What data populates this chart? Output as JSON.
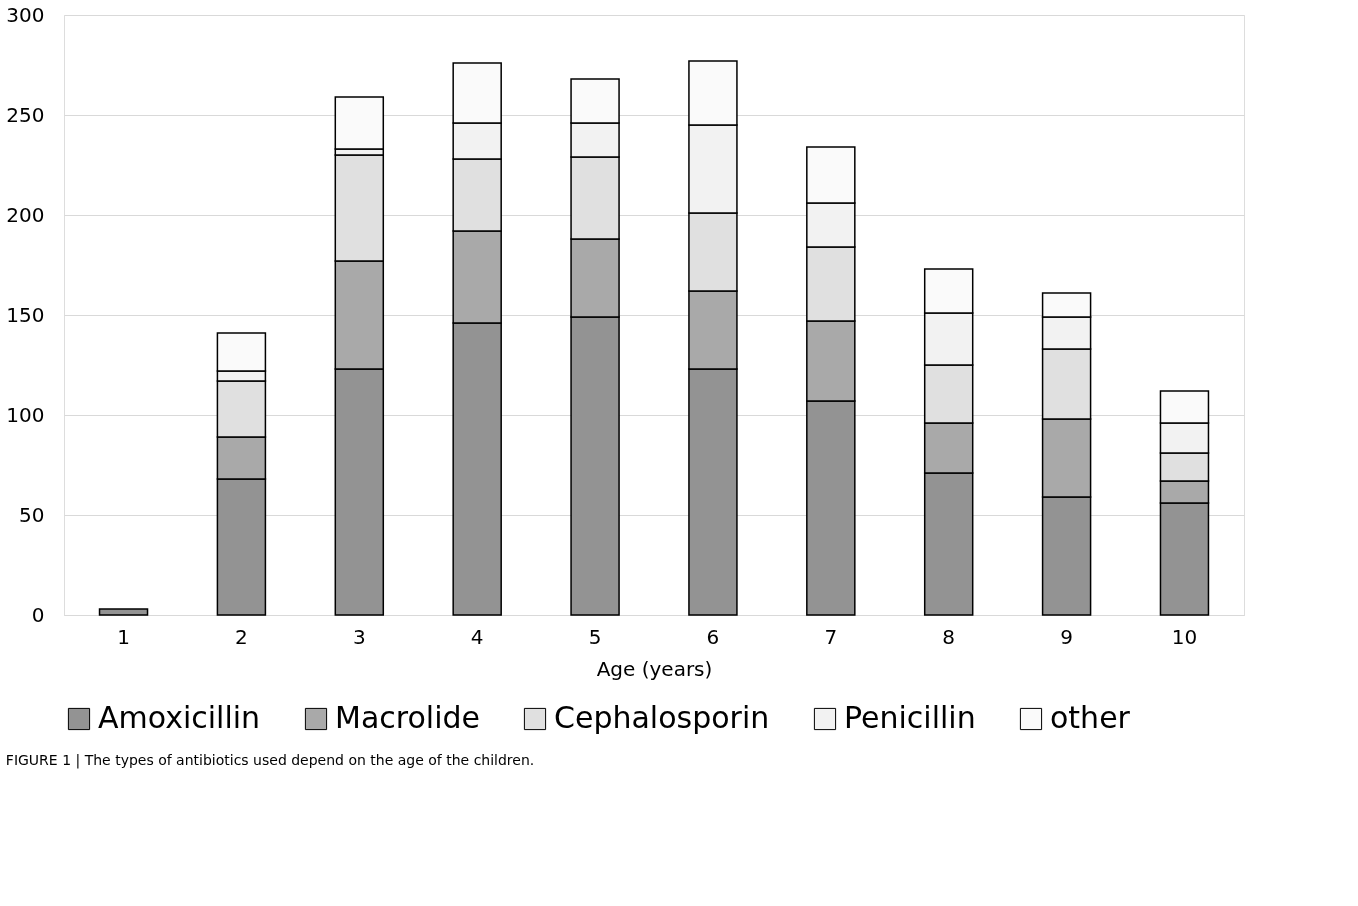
{
  "chart_data": {
    "type": "bar",
    "stacked": true,
    "xlabel": "Age (years)",
    "categories": [
      "1",
      "2",
      "3",
      "4",
      "5",
      "6",
      "7",
      "8",
      "9",
      "10"
    ],
    "series": [
      {
        "name": "Amoxicillin",
        "color": "#939393",
        "values": [
          3,
          68,
          123,
          146,
          149,
          123,
          107,
          71,
          59,
          56
        ]
      },
      {
        "name": "Macrolide",
        "color": "#a9a9a9",
        "values": [
          0,
          21,
          54,
          46,
          39,
          39,
          40,
          25,
          39,
          11
        ]
      },
      {
        "name": "Cephalosporin",
        "color": "#e0e0e0",
        "values": [
          0,
          28,
          53,
          36,
          41,
          39,
          37,
          29,
          35,
          14
        ]
      },
      {
        "name": "Penicillin",
        "color": "#f2f2f2",
        "values": [
          0,
          5,
          3,
          18,
          17,
          44,
          22,
          26,
          16,
          15
        ]
      },
      {
        "name": "other",
        "color": "#fafafa",
        "values": [
          0,
          19,
          26,
          30,
          22,
          32,
          28,
          22,
          12,
          16
        ]
      }
    ],
    "ylim": [
      0,
      300
    ],
    "yticks": [
      0,
      50,
      100,
      150,
      200,
      250,
      300
    ],
    "grid": "y",
    "legend": "bottom",
    "annotations": [
      "FIGURE 1 | The types of antibiotics used depend on the age of the children."
    ]
  }
}
